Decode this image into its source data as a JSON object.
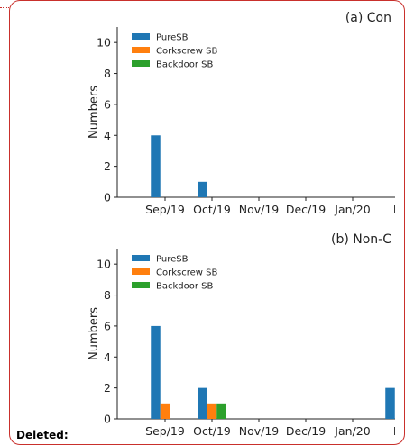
{
  "annotation": {
    "deleted_label": "Deleted:"
  },
  "colors": {
    "PureSB": "#1f77b4",
    "Corkscrew SB": "#ff7f0e",
    "Backdoor SB": "#2ca02c",
    "frame": "#c9302c"
  },
  "chart_data": [
    {
      "type": "bar",
      "title": "(a) Con",
      "xlabel": "",
      "ylabel": "Numbers",
      "ylim": [
        0,
        11
      ],
      "yticks": [
        0,
        2,
        4,
        6,
        8,
        10
      ],
      "categories": [
        "Sep/19",
        "Oct/19",
        "Nov/19",
        "Dec/19",
        "Jan/20",
        "Fe"
      ],
      "legend_position": "top-left",
      "series": [
        {
          "name": "PureSB",
          "values": [
            4,
            1,
            0,
            0,
            0,
            0
          ]
        },
        {
          "name": "Corkscrew SB",
          "values": [
            0,
            0,
            0,
            0,
            0,
            0
          ]
        },
        {
          "name": "Backdoor SB",
          "values": [
            0,
            0,
            0,
            0,
            0,
            0
          ]
        }
      ]
    },
    {
      "type": "bar",
      "title": "(b) Non-C",
      "xlabel": "",
      "ylabel": "Numbers",
      "ylim": [
        0,
        11
      ],
      "yticks": [
        0,
        2,
        4,
        6,
        8,
        10
      ],
      "categories": [
        "Sep/19",
        "Oct/19",
        "Nov/19",
        "Dec/19",
        "Jan/20",
        "Fe"
      ],
      "legend_position": "top-left",
      "series": [
        {
          "name": "PureSB",
          "values": [
            6,
            2,
            0,
            0,
            0,
            2
          ]
        },
        {
          "name": "Corkscrew SB",
          "values": [
            1,
            1,
            0,
            0,
            0,
            0
          ]
        },
        {
          "name": "Backdoor SB",
          "values": [
            0,
            1,
            0,
            0,
            0,
            0
          ]
        }
      ]
    }
  ]
}
